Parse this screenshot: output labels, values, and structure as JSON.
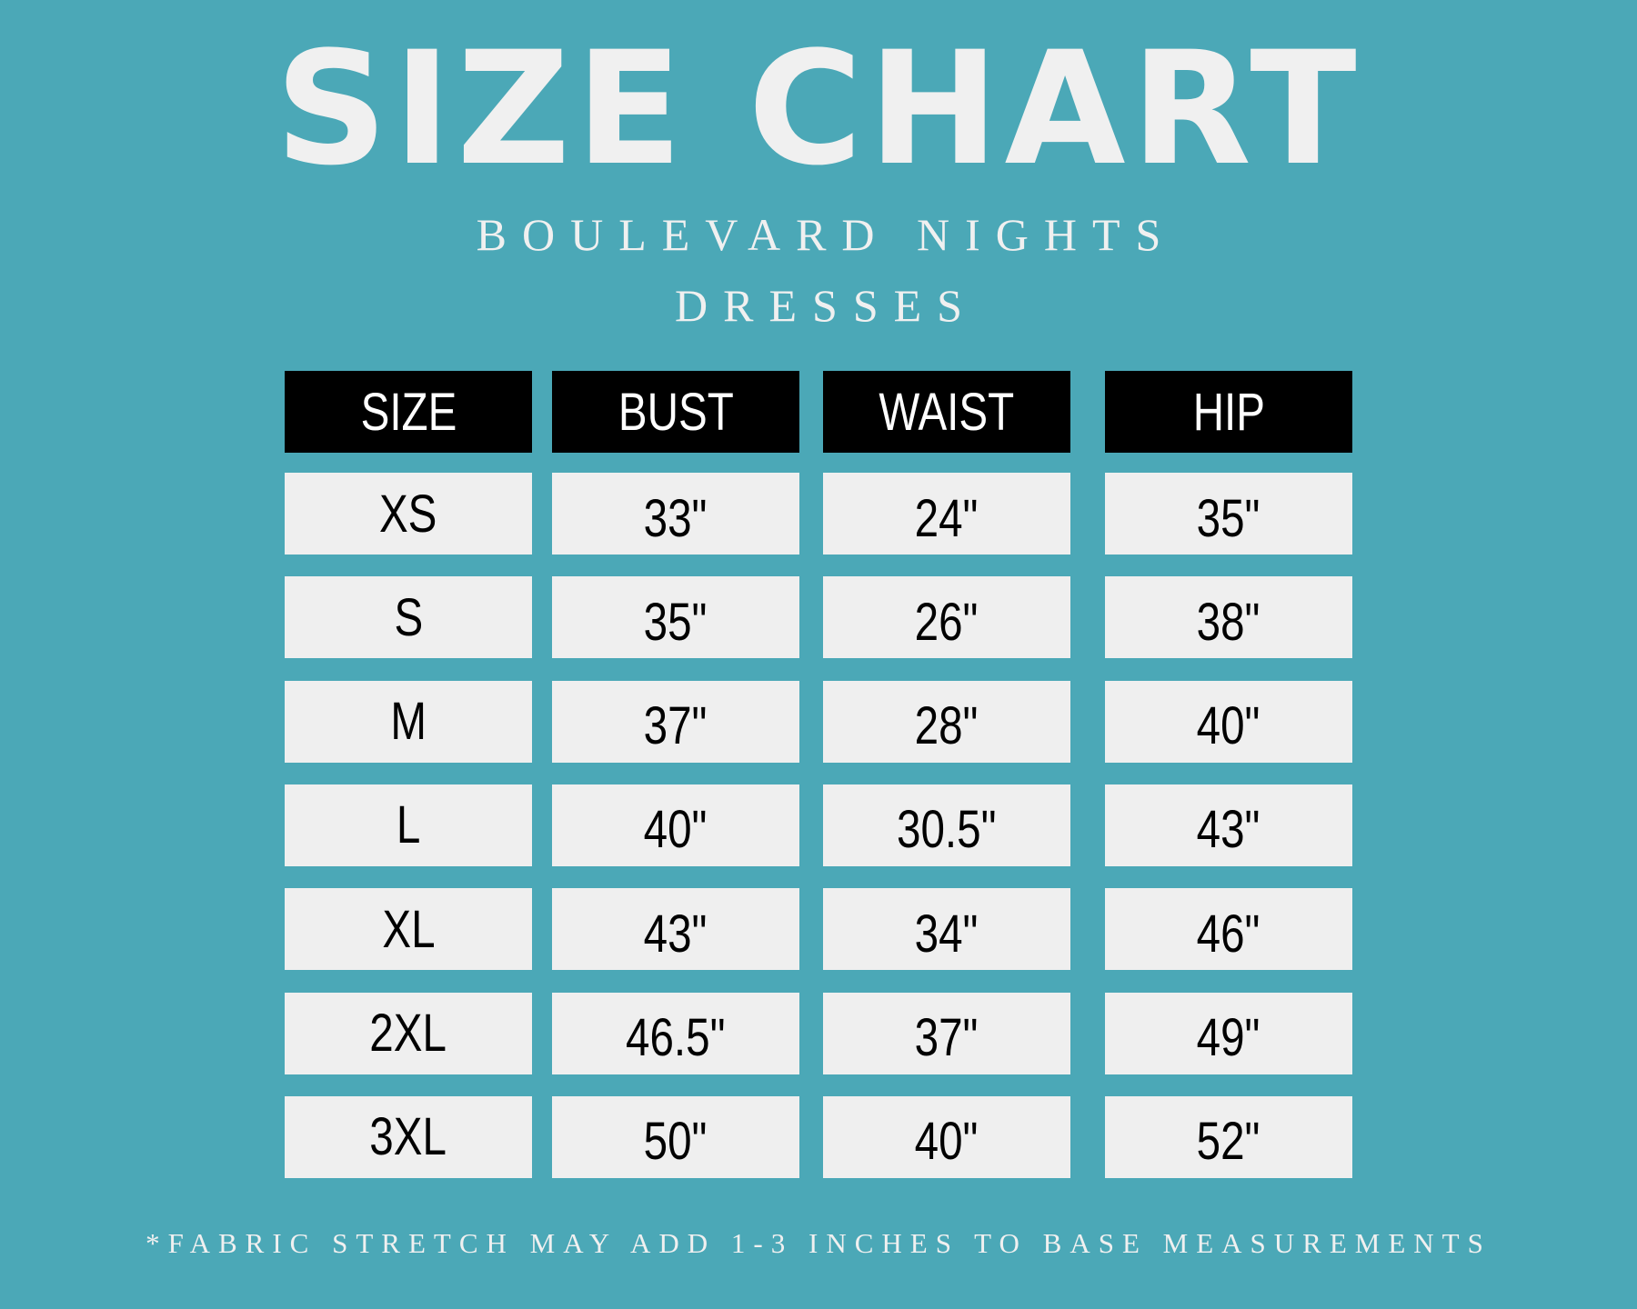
{
  "title": "SIZE CHART",
  "subtitle_line1": "BOULEVARD NIGHTS",
  "subtitle_line2": "DRESSES",
  "colors": {
    "background": "#4ba8b7",
    "header": "#000000",
    "cell": "#efefef"
  },
  "table": {
    "headers": [
      "SIZE",
      "BUST",
      "WAIST",
      "HIP"
    ],
    "rows": [
      [
        "XS",
        "33\"",
        "24\"",
        "35\""
      ],
      [
        "S",
        "35\"",
        "26\"",
        "38\""
      ],
      [
        "M",
        "37\"",
        "28\"",
        "40\""
      ],
      [
        "L",
        "40\"",
        "30.5\"",
        "43\""
      ],
      [
        "XL",
        "43\"",
        "34\"",
        "46\""
      ],
      [
        "2XL",
        "46.5\"",
        "37\"",
        "49\""
      ],
      [
        "3XL",
        "50\"",
        "40\"",
        "52\""
      ]
    ]
  },
  "footnote": "*FABRIC STRETCH MAY ADD 1-3 INCHES TO BASE MEASUREMENTS"
}
